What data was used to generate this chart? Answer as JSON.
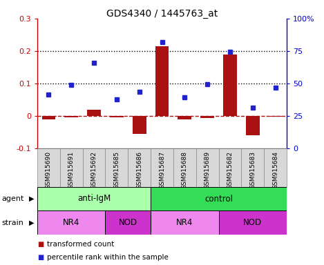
{
  "title": "GDS4340 / 1445763_at",
  "samples": [
    "GSM915690",
    "GSM915691",
    "GSM915692",
    "GSM915685",
    "GSM915686",
    "GSM915687",
    "GSM915688",
    "GSM915689",
    "GSM915682",
    "GSM915683",
    "GSM915684"
  ],
  "transformed_count": [
    -0.01,
    -0.005,
    0.02,
    -0.005,
    -0.055,
    0.215,
    -0.01,
    -0.007,
    0.19,
    -0.06,
    -0.003
  ],
  "percentile_rank": [
    0.065,
    0.095,
    0.163,
    0.052,
    0.075,
    0.228,
    0.058,
    0.097,
    0.197,
    0.025,
    0.088
  ],
  "bar_color": "#aa1111",
  "dot_color": "#2222cc",
  "left_ylim": [
    -0.1,
    0.3
  ],
  "right_ylim": [
    0,
    100
  ],
  "left_yticks": [
    -0.1,
    0.0,
    0.1,
    0.2,
    0.3
  ],
  "right_yticks": [
    0,
    25,
    50,
    75,
    100
  ],
  "left_yticklabels": [
    "-0.1",
    "0",
    "0.1",
    "0.2",
    "0.3"
  ],
  "right_yticklabels": [
    "0",
    "25",
    "50",
    "75",
    "100%"
  ],
  "hline_values": [
    0.1,
    0.2
  ],
  "dashed_zero": 0.0,
  "agent_groups": [
    {
      "label": "anti-IgM",
      "start": 0,
      "end": 5,
      "color": "#aaffaa"
    },
    {
      "label": "control",
      "start": 5,
      "end": 11,
      "color": "#33dd55"
    }
  ],
  "strain_groups": [
    {
      "label": "NR4",
      "start": 0,
      "end": 3,
      "color": "#ee88ee"
    },
    {
      "label": "NOD",
      "start": 3,
      "end": 5,
      "color": "#cc33cc"
    },
    {
      "label": "NR4",
      "start": 5,
      "end": 8,
      "color": "#ee88ee"
    },
    {
      "label": "NOD",
      "start": 8,
      "end": 11,
      "color": "#cc33cc"
    }
  ],
  "legend_items": [
    {
      "label": "transformed count",
      "color": "#aa1111",
      "marker": "s"
    },
    {
      "label": "percentile rank within the sample",
      "color": "#2222cc",
      "marker": "s"
    }
  ],
  "left_label_color": "#cc0000",
  "right_label_color": "#0000cc",
  "agent_label": "agent",
  "strain_label": "strain",
  "sample_box_color": "#d8d8d8",
  "sample_box_edge": "#888888"
}
